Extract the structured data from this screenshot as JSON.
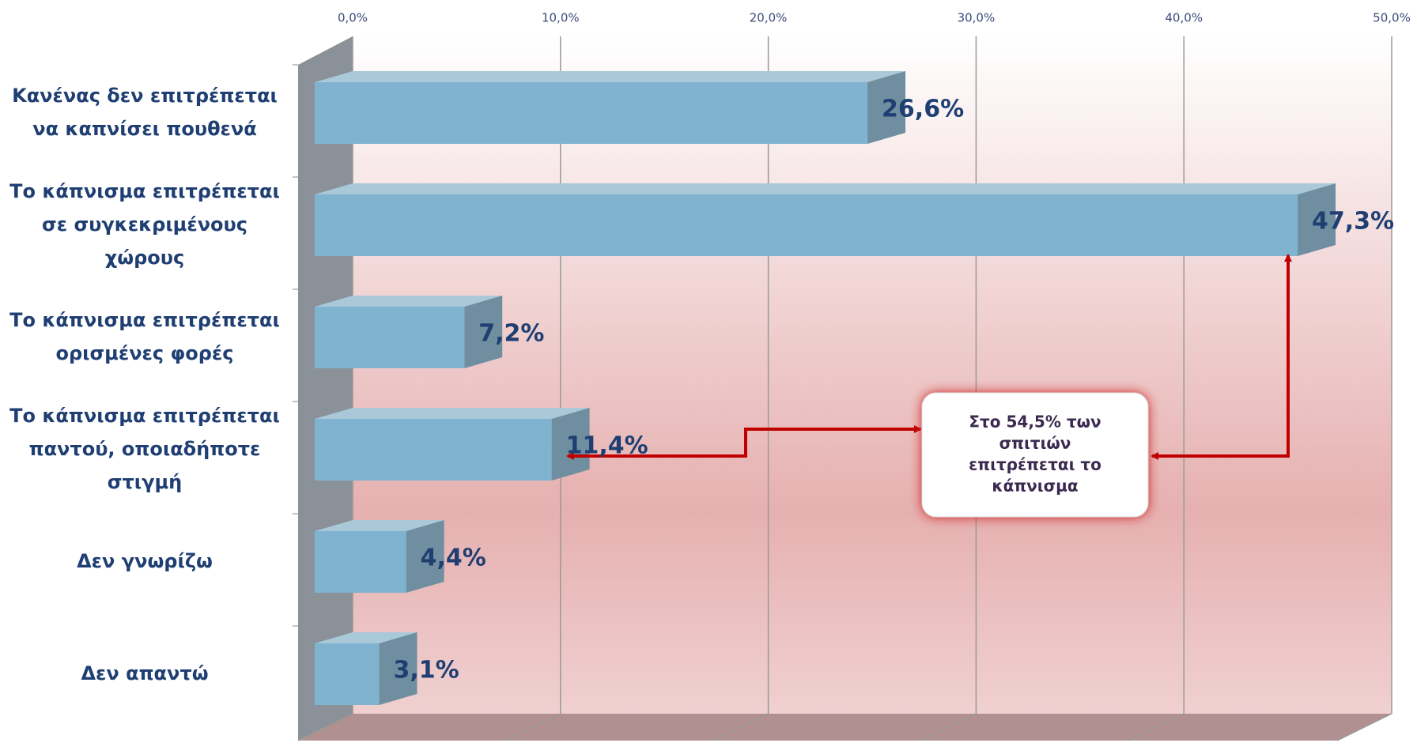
{
  "chart_data": {
    "type": "bar",
    "orientation": "horizontal",
    "categories": [
      "Κανένας δεν επιτρέπεται\nνα καπνίσει πουθενά",
      "Το κάπνισμα επιτρέπεται\nσε συγκεκριμένους\nχώρους",
      "Το κάπνισμα επιτρέπεται\nορισμένες φορές",
      "Το κάπνισμα επιτρέπεται\nπαντού, οποιαδήποτε\nστιγμή",
      "Δεν γνωρίζω",
      "Δεν απαντώ"
    ],
    "values": [
      26.6,
      47.3,
      7.2,
      11.4,
      4.4,
      3.1
    ],
    "value_labels": [
      "26,6%",
      "47,3%",
      "7,2%",
      "11,4%",
      "4,4%",
      "3,1%"
    ],
    "color": "#7fb3d0",
    "xlim": [
      0,
      50
    ],
    "xticks": [
      {
        "value": 0,
        "label": "0,0%"
      },
      {
        "value": 10,
        "label": "10,0%"
      },
      {
        "value": 20,
        "label": "20,0%"
      },
      {
        "value": 30,
        "label": "30,0%"
      },
      {
        "value": 40,
        "label": "40,0%"
      },
      {
        "value": 50,
        "label": "50,0%"
      }
    ],
    "grid": true,
    "annotation": "Στο 54,5% των\nσπιτιών\nεπιτρέπεται το\nκάπνισμα"
  }
}
